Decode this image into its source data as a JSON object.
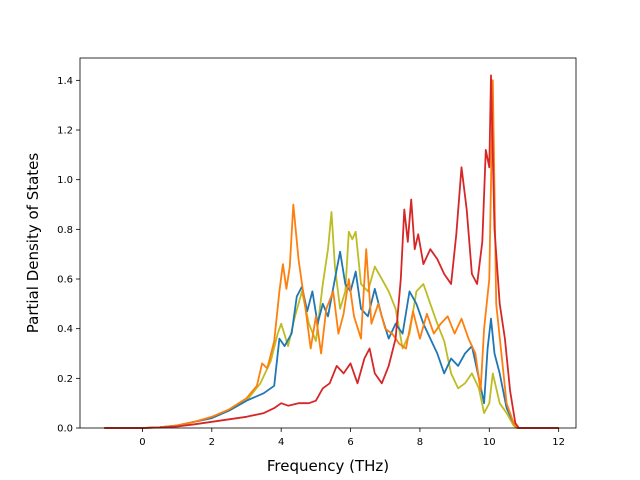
{
  "chart_data": {
    "type": "line",
    "title": "",
    "xlabel": "Frequency (THz)",
    "ylabel": "Partial Density of States",
    "xlim": [
      -1.8,
      12.5
    ],
    "ylim": [
      0.0,
      1.49
    ],
    "xticks": [
      0,
      2,
      4,
      6,
      8,
      10,
      12
    ],
    "yticks": [
      0.0,
      0.2,
      0.4,
      0.6,
      0.8,
      1.0,
      1.2,
      1.4
    ],
    "xtick_labels": [
      "0",
      "2",
      "4",
      "6",
      "8",
      "10",
      "12"
    ],
    "ytick_labels": [
      "0.0",
      "0.2",
      "0.4",
      "0.6",
      "0.8",
      "1.0",
      "1.2",
      "1.4"
    ],
    "grid": false,
    "legend": "none",
    "series": [
      {
        "color": "#bcbd22",
        "points": [
          [
            -1.1,
            0
          ],
          [
            0,
            0
          ],
          [
            0.5,
            0.003
          ],
          [
            1,
            0.01
          ],
          [
            1.5,
            0.025
          ],
          [
            2,
            0.04
          ],
          [
            2.5,
            0.07
          ],
          [
            3,
            0.11
          ],
          [
            3.4,
            0.18
          ],
          [
            3.7,
            0.27
          ],
          [
            3.9,
            0.38
          ],
          [
            4.0,
            0.42
          ],
          [
            4.2,
            0.33
          ],
          [
            4.4,
            0.45
          ],
          [
            4.6,
            0.55
          ],
          [
            4.8,
            0.42
          ],
          [
            5.0,
            0.35
          ],
          [
            5.2,
            0.58
          ],
          [
            5.35,
            0.72
          ],
          [
            5.45,
            0.87
          ],
          [
            5.55,
            0.65
          ],
          [
            5.7,
            0.48
          ],
          [
            5.85,
            0.55
          ],
          [
            5.95,
            0.79
          ],
          [
            6.05,
            0.76
          ],
          [
            6.15,
            0.79
          ],
          [
            6.3,
            0.58
          ],
          [
            6.5,
            0.55
          ],
          [
            6.7,
            0.65
          ],
          [
            6.9,
            0.6
          ],
          [
            7.1,
            0.55
          ],
          [
            7.3,
            0.48
          ],
          [
            7.5,
            0.32
          ],
          [
            7.7,
            0.38
          ],
          [
            7.9,
            0.55
          ],
          [
            8.1,
            0.58
          ],
          [
            8.3,
            0.5
          ],
          [
            8.5,
            0.42
          ],
          [
            8.7,
            0.35
          ],
          [
            8.9,
            0.22
          ],
          [
            9.1,
            0.16
          ],
          [
            9.3,
            0.18
          ],
          [
            9.5,
            0.22
          ],
          [
            9.7,
            0.16
          ],
          [
            9.85,
            0.06
          ],
          [
            10.0,
            0.1
          ],
          [
            10.1,
            0.22
          ],
          [
            10.3,
            0.1
          ],
          [
            10.5,
            0.06
          ],
          [
            10.7,
            0.01
          ],
          [
            10.8,
            0
          ],
          [
            12,
            0
          ]
        ]
      },
      {
        "color": "#1f77b4",
        "points": [
          [
            -1.1,
            0
          ],
          [
            0,
            0
          ],
          [
            0.5,
            0.003
          ],
          [
            1,
            0.01
          ],
          [
            1.5,
            0.025
          ],
          [
            2,
            0.04
          ],
          [
            2.5,
            0.07
          ],
          [
            3,
            0.11
          ],
          [
            3.5,
            0.14
          ],
          [
            3.8,
            0.17
          ],
          [
            3.95,
            0.36
          ],
          [
            4.1,
            0.33
          ],
          [
            4.3,
            0.38
          ],
          [
            4.45,
            0.53
          ],
          [
            4.6,
            0.57
          ],
          [
            4.75,
            0.47
          ],
          [
            4.9,
            0.55
          ],
          [
            5.05,
            0.42
          ],
          [
            5.2,
            0.5
          ],
          [
            5.35,
            0.45
          ],
          [
            5.55,
            0.6
          ],
          [
            5.7,
            0.71
          ],
          [
            5.85,
            0.58
          ],
          [
            6.0,
            0.55
          ],
          [
            6.15,
            0.63
          ],
          [
            6.3,
            0.48
          ],
          [
            6.5,
            0.45
          ],
          [
            6.7,
            0.56
          ],
          [
            6.9,
            0.45
          ],
          [
            7.1,
            0.36
          ],
          [
            7.3,
            0.42
          ],
          [
            7.5,
            0.38
          ],
          [
            7.7,
            0.55
          ],
          [
            7.9,
            0.5
          ],
          [
            8.1,
            0.42
          ],
          [
            8.3,
            0.36
          ],
          [
            8.5,
            0.3
          ],
          [
            8.7,
            0.22
          ],
          [
            8.9,
            0.28
          ],
          [
            9.1,
            0.25
          ],
          [
            9.3,
            0.3
          ],
          [
            9.5,
            0.33
          ],
          [
            9.7,
            0.2
          ],
          [
            9.85,
            0.1
          ],
          [
            9.95,
            0.32
          ],
          [
            10.05,
            0.44
          ],
          [
            10.15,
            0.3
          ],
          [
            10.3,
            0.22
          ],
          [
            10.5,
            0.08
          ],
          [
            10.7,
            0.02
          ],
          [
            10.8,
            0
          ],
          [
            12,
            0
          ]
        ]
      },
      {
        "color": "#ff7f0e",
        "points": [
          [
            -1.1,
            0
          ],
          [
            0,
            0
          ],
          [
            0.5,
            0.003
          ],
          [
            1,
            0.01
          ],
          [
            1.5,
            0.025
          ],
          [
            2,
            0.045
          ],
          [
            2.5,
            0.075
          ],
          [
            3,
            0.12
          ],
          [
            3.3,
            0.17
          ],
          [
            3.45,
            0.26
          ],
          [
            3.6,
            0.24
          ],
          [
            3.8,
            0.35
          ],
          [
            3.95,
            0.55
          ],
          [
            4.05,
            0.66
          ],
          [
            4.15,
            0.56
          ],
          [
            4.25,
            0.65
          ],
          [
            4.35,
            0.9
          ],
          [
            4.5,
            0.68
          ],
          [
            4.7,
            0.48
          ],
          [
            4.85,
            0.32
          ],
          [
            5.0,
            0.45
          ],
          [
            5.15,
            0.3
          ],
          [
            5.3,
            0.48
          ],
          [
            5.5,
            0.55
          ],
          [
            5.65,
            0.38
          ],
          [
            5.8,
            0.46
          ],
          [
            5.95,
            0.6
          ],
          [
            6.1,
            0.45
          ],
          [
            6.3,
            0.36
          ],
          [
            6.45,
            0.72
          ],
          [
            6.6,
            0.42
          ],
          [
            6.8,
            0.5
          ],
          [
            7.0,
            0.4
          ],
          [
            7.2,
            0.38
          ],
          [
            7.4,
            0.34
          ],
          [
            7.6,
            0.32
          ],
          [
            7.8,
            0.47
          ],
          [
            8.0,
            0.36
          ],
          [
            8.2,
            0.46
          ],
          [
            8.4,
            0.38
          ],
          [
            8.6,
            0.42
          ],
          [
            8.8,
            0.45
          ],
          [
            9.0,
            0.38
          ],
          [
            9.2,
            0.44
          ],
          [
            9.4,
            0.36
          ],
          [
            9.6,
            0.3
          ],
          [
            9.75,
            0.15
          ],
          [
            9.85,
            0.4
          ],
          [
            10.0,
            0.6
          ],
          [
            10.1,
            1.4
          ],
          [
            10.2,
            0.5
          ],
          [
            10.35,
            0.3
          ],
          [
            10.5,
            0.1
          ],
          [
            10.7,
            0.02
          ],
          [
            10.8,
            0
          ],
          [
            12,
            0
          ]
        ]
      },
      {
        "color": "#d62728",
        "points": [
          [
            -1.1,
            0
          ],
          [
            0,
            0
          ],
          [
            0.5,
            0.002
          ],
          [
            1,
            0.006
          ],
          [
            1.5,
            0.015
          ],
          [
            2,
            0.025
          ],
          [
            2.5,
            0.035
          ],
          [
            3,
            0.045
          ],
          [
            3.5,
            0.06
          ],
          [
            3.8,
            0.08
          ],
          [
            4.0,
            0.1
          ],
          [
            4.2,
            0.09
          ],
          [
            4.5,
            0.1
          ],
          [
            4.8,
            0.1
          ],
          [
            5.0,
            0.11
          ],
          [
            5.2,
            0.16
          ],
          [
            5.4,
            0.18
          ],
          [
            5.6,
            0.25
          ],
          [
            5.8,
            0.22
          ],
          [
            6.0,
            0.26
          ],
          [
            6.2,
            0.18
          ],
          [
            6.4,
            0.28
          ],
          [
            6.55,
            0.32
          ],
          [
            6.7,
            0.22
          ],
          [
            6.9,
            0.18
          ],
          [
            7.1,
            0.25
          ],
          [
            7.3,
            0.36
          ],
          [
            7.45,
            0.6
          ],
          [
            7.55,
            0.88
          ],
          [
            7.65,
            0.75
          ],
          [
            7.75,
            0.92
          ],
          [
            7.85,
            0.72
          ],
          [
            7.95,
            0.78
          ],
          [
            8.1,
            0.66
          ],
          [
            8.3,
            0.72
          ],
          [
            8.5,
            0.68
          ],
          [
            8.7,
            0.62
          ],
          [
            8.9,
            0.58
          ],
          [
            9.05,
            0.78
          ],
          [
            9.2,
            1.05
          ],
          [
            9.35,
            0.88
          ],
          [
            9.5,
            0.62
          ],
          [
            9.65,
            0.58
          ],
          [
            9.8,
            0.75
          ],
          [
            9.9,
            1.12
          ],
          [
            10.0,
            1.05
          ],
          [
            10.05,
            1.42
          ],
          [
            10.15,
            0.8
          ],
          [
            10.3,
            0.5
          ],
          [
            10.45,
            0.36
          ],
          [
            10.6,
            0.15
          ],
          [
            10.75,
            0.02
          ],
          [
            10.85,
            0
          ],
          [
            12,
            0
          ]
        ]
      }
    ]
  }
}
